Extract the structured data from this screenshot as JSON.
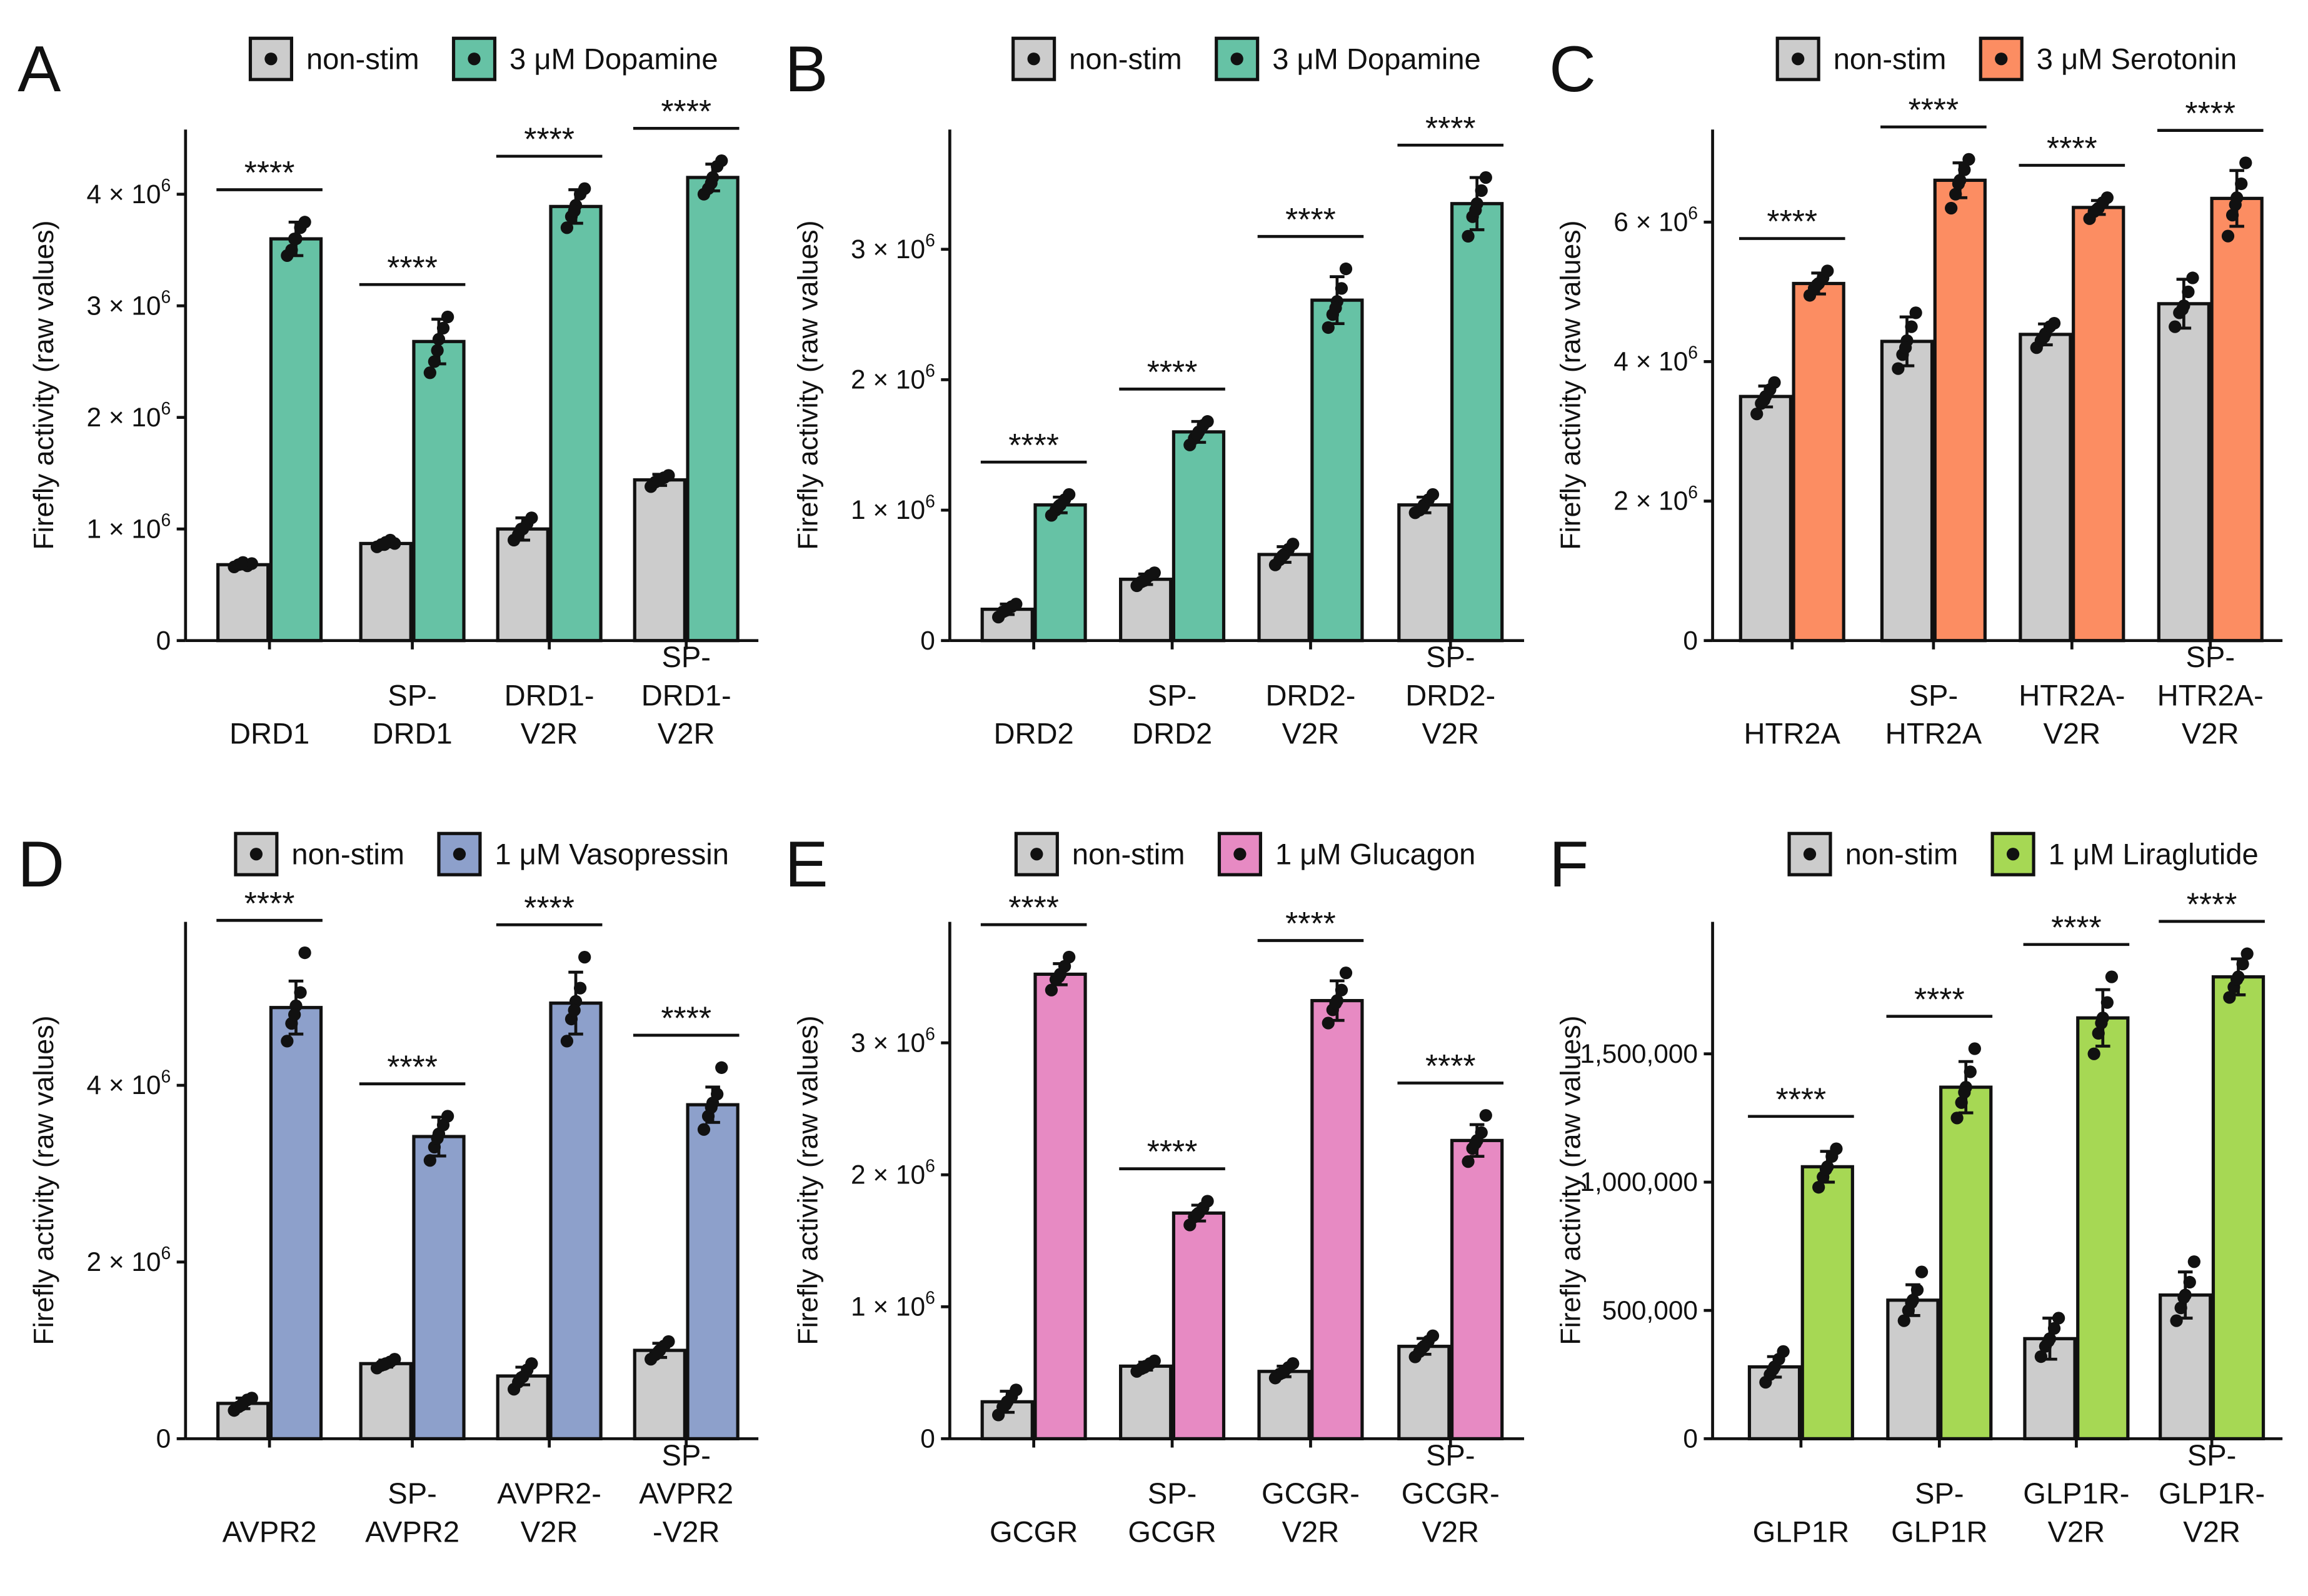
{
  "figure": {
    "y_axis_label": "Firefly activity (raw values)",
    "control_color": "#cccccc"
  },
  "chart_data": [
    {
      "panel": "A",
      "type": "bar",
      "ylabel": "Firefly activity (raw values)",
      "ylim": [
        0,
        4500000
      ],
      "y_ticks": [
        0,
        1000000,
        2000000,
        3000000,
        4000000
      ],
      "y_tick_labels": [
        "0",
        "1 × 10^6",
        "2 × 10^6",
        "3 × 10^6",
        "4 × 10^6"
      ],
      "categories": [
        [
          "DRD1"
        ],
        [
          "SP-",
          "DRD1"
        ],
        [
          "DRD1-",
          "V2R"
        ],
        [
          "SP-",
          "DRD1-",
          "V2R"
        ]
      ],
      "series": [
        {
          "name": "non-stim",
          "color": "#cccccc",
          "values": [
            680000,
            870000,
            1000000,
            1440000
          ],
          "errors": [
            20000,
            30000,
            100000,
            50000
          ],
          "points": [
            [
              660000,
              680000,
              700000,
              670000,
              690000,
              685000
            ],
            [
              840000,
              860000,
              880000,
              900000,
              870000,
              860000
            ],
            [
              900000,
              950000,
              1000000,
              1050000,
              1100000,
              1000000
            ],
            [
              1380000,
              1420000,
              1440000,
              1460000,
              1480000,
              1440000
            ]
          ]
        },
        {
          "name": "3 μM Dopamine",
          "color": "#66c2a5",
          "values": [
            3600000,
            2680000,
            3890000,
            4150000
          ],
          "errors": [
            150000,
            200000,
            150000,
            120000
          ],
          "points": [
            [
              3450000,
              3500000,
              3600000,
              3700000,
              3750000,
              3600000
            ],
            [
              2400000,
              2500000,
              2700000,
              2800000,
              2900000,
              2600000
            ],
            [
              3700000,
              3800000,
              3900000,
              4000000,
              4050000,
              3850000
            ],
            [
              4000000,
              4050000,
              4150000,
              4250000,
              4300000,
              4100000
            ]
          ]
        }
      ],
      "significance": [
        "****",
        "****",
        "****",
        "****"
      ]
    },
    {
      "panel": "B",
      "type": "bar",
      "ylabel": "Firefly activity (raw values)",
      "ylim": [
        0,
        3850000
      ],
      "y_ticks": [
        0,
        1000000,
        2000000,
        3000000
      ],
      "y_tick_labels": [
        "0",
        "1 × 10^6",
        "2 × 10^6",
        "3 × 10^6"
      ],
      "categories": [
        [
          "DRD2"
        ],
        [
          "SP-",
          "DRD2"
        ],
        [
          "DRD2-",
          "V2R"
        ],
        [
          "SP-",
          "DRD2-",
          "V2R"
        ]
      ],
      "series": [
        {
          "name": "non-stim",
          "color": "#cccccc",
          "values": [
            240000,
            470000,
            660000,
            1040000
          ],
          "errors": [
            40000,
            40000,
            60000,
            60000
          ],
          "points": [
            [
              180000,
              220000,
              240000,
              260000,
              280000,
              230000
            ],
            [
              420000,
              450000,
              470000,
              500000,
              520000,
              460000
            ],
            [
              580000,
              620000,
              660000,
              700000,
              740000,
              650000
            ],
            [
              980000,
              1000000,
              1040000,
              1080000,
              1120000,
              1020000
            ]
          ]
        },
        {
          "name": "3 μM Dopamine",
          "color": "#66c2a5",
          "values": [
            1040000,
            1600000,
            2610000,
            3350000
          ],
          "errors": [
            60000,
            80000,
            180000,
            200000
          ],
          "points": [
            [
              960000,
              1000000,
              1040000,
              1080000,
              1120000,
              1030000
            ],
            [
              1500000,
              1550000,
              1600000,
              1650000,
              1680000,
              1580000
            ],
            [
              2400000,
              2500000,
              2600000,
              2700000,
              2850000,
              2550000
            ],
            [
              3100000,
              3250000,
              3350000,
              3450000,
              3550000,
              3300000
            ]
          ]
        }
      ],
      "significance": [
        "****",
        "****",
        "****",
        "****"
      ]
    },
    {
      "panel": "C",
      "type": "bar",
      "ylabel": "Firefly activity (raw values)",
      "ylim": [
        0,
        7200000
      ],
      "y_ticks": [
        0,
        2000000,
        4000000,
        6000000
      ],
      "y_tick_labels": [
        "0",
        "2 × 10^6",
        "4 × 10^6",
        "6 × 10^6"
      ],
      "categories": [
        [
          "HTR2A"
        ],
        [
          "SP-",
          "HTR2A"
        ],
        [
          "HTR2A-",
          "V2R"
        ],
        [
          "SP-",
          "HTR2A-",
          "V2R"
        ]
      ],
      "series": [
        {
          "name": "non-stim",
          "color": "#cccccc",
          "values": [
            3500000,
            4290000,
            4390000,
            4830000
          ],
          "errors": [
            150000,
            350000,
            150000,
            350000
          ],
          "points": [
            [
              3250000,
              3400000,
              3500000,
              3600000,
              3700000,
              3450000
            ],
            [
              3900000,
              4100000,
              4300000,
              4500000,
              4700000,
              4200000
            ],
            [
              4200000,
              4300000,
              4400000,
              4500000,
              4550000,
              4350000
            ],
            [
              4500000,
              4700000,
              4800000,
              5000000,
              5200000,
              4750000
            ]
          ]
        },
        {
          "name": "3 μM Serotonin",
          "color": "#fc8d62",
          "values": [
            5120000,
            6600000,
            6210000,
            6340000
          ],
          "errors": [
            150000,
            250000,
            100000,
            400000
          ],
          "points": [
            [
              4950000,
              5050000,
              5120000,
              5200000,
              5300000,
              5100000
            ],
            [
              6200000,
              6400000,
              6600000,
              6750000,
              6900000,
              6550000
            ],
            [
              6050000,
              6150000,
              6200000,
              6280000,
              6350000,
              6180000
            ],
            [
              5800000,
              6100000,
              6350000,
              6550000,
              6850000,
              6250000
            ]
          ]
        }
      ],
      "significance": [
        "****",
        "****",
        "****",
        "****"
      ]
    },
    {
      "panel": "D",
      "type": "bar",
      "ylabel": "Firefly activity (raw values)",
      "ylim": [
        0,
        5750000
      ],
      "y_ticks": [
        0,
        2000000,
        4000000
      ],
      "y_tick_labels": [
        "0",
        "2 × 10^6",
        "4 × 10^6"
      ],
      "categories": [
        [
          "AVPR2"
        ],
        [
          "SP-",
          "AVPR2"
        ],
        [
          "AVPR2-",
          "V2R"
        ],
        [
          "SP-",
          "AVPR2",
          "-V2R"
        ]
      ],
      "series": [
        {
          "name": "non-stim",
          "color": "#cccccc",
          "values": [
            400000,
            850000,
            710000,
            1000000
          ],
          "errors": [
            60000,
            40000,
            100000,
            80000
          ],
          "points": [
            [
              320000,
              360000,
              400000,
              440000,
              460000,
              380000
            ],
            [
              800000,
              830000,
              850000,
              870000,
              900000,
              840000
            ],
            [
              560000,
              640000,
              700000,
              780000,
              850000,
              690000
            ],
            [
              900000,
              950000,
              1000000,
              1050000,
              1100000,
              980000
            ]
          ]
        },
        {
          "name": "1 μM Vasopressin",
          "color": "#8da0cb",
          "values": [
            4880000,
            3420000,
            4930000,
            3780000
          ],
          "errors": [
            300000,
            220000,
            350000,
            200000
          ],
          "points": [
            [
              4500000,
              4700000,
              4900000,
              5050000,
              5500000,
              4800000
            ],
            [
              3150000,
              3300000,
              3450000,
              3550000,
              3650000,
              3400000
            ],
            [
              4500000,
              4750000,
              4950000,
              5100000,
              5450000,
              4850000
            ],
            [
              3500000,
              3650000,
              3800000,
              3900000,
              4200000,
              3750000
            ]
          ]
        }
      ],
      "significance": [
        "****",
        "****",
        "****",
        "****"
      ]
    },
    {
      "panel": "E",
      "type": "bar",
      "ylabel": "Firefly activity (raw values)",
      "ylim": [
        0,
        3850000
      ],
      "y_ticks": [
        0,
        1000000,
        2000000,
        3000000
      ],
      "y_tick_labels": [
        "0",
        "1 × 10^6",
        "2 × 10^6",
        "3 × 10^6"
      ],
      "categories": [
        [
          "GCGR"
        ],
        [
          "SP-",
          "GCGR"
        ],
        [
          "GCGR-",
          "V2R"
        ],
        [
          "SP-",
          "GCGR-",
          "V2R"
        ]
      ],
      "series": [
        {
          "name": "non-stim",
          "color": "#cccccc",
          "values": [
            280000,
            550000,
            510000,
            700000
          ],
          "errors": [
            80000,
            30000,
            40000,
            60000
          ],
          "points": [
            [
              180000,
              240000,
              280000,
              320000,
              370000,
              260000
            ],
            [
              510000,
              530000,
              550000,
              570000,
              590000,
              540000
            ],
            [
              460000,
              490000,
              510000,
              540000,
              570000,
              500000
            ],
            [
              620000,
              660000,
              700000,
              740000,
              780000,
              690000
            ]
          ]
        },
        {
          "name": "1 μM Glucagon",
          "color": "#e78ac3",
          "values": [
            3520000,
            1710000,
            3320000,
            2260000
          ],
          "errors": [
            80000,
            60000,
            150000,
            120000
          ],
          "points": [
            [
              3400000,
              3480000,
              3520000,
              3580000,
              3650000,
              3500000
            ],
            [
              1620000,
              1680000,
              1710000,
              1750000,
              1800000,
              1700000
            ],
            [
              3150000,
              3250000,
              3320000,
              3400000,
              3530000,
              3300000
            ],
            [
              2100000,
              2200000,
              2260000,
              2320000,
              2450000,
              2240000
            ]
          ]
        }
      ],
      "significance": [
        "****",
        "****",
        "****",
        "****"
      ]
    },
    {
      "panel": "F",
      "type": "bar",
      "ylabel": "Firefly activity (raw values)",
      "ylim": [
        0,
        1980000
      ],
      "y_ticks": [
        0,
        500000,
        1000000,
        1500000
      ],
      "y_tick_labels": [
        "0",
        "500,000",
        "1,000,000",
        "1,500,000"
      ],
      "categories": [
        [
          "GLP1R"
        ],
        [
          "SP-",
          "GLP1R"
        ],
        [
          "GLP1R-",
          "V2R"
        ],
        [
          "SP-",
          "GLP1R-",
          "V2R"
        ]
      ],
      "series": [
        {
          "name": "non-stim",
          "color": "#cccccc",
          "values": [
            280000,
            540000,
            390000,
            560000
          ],
          "errors": [
            40000,
            60000,
            80000,
            90000
          ],
          "points": [
            [
              220000,
              250000,
              280000,
              310000,
              340000,
              270000
            ],
            [
              460000,
              500000,
              540000,
              580000,
              650000,
              530000
            ],
            [
              320000,
              360000,
              390000,
              430000,
              470000,
              380000
            ],
            [
              460000,
              510000,
              560000,
              610000,
              690000,
              550000
            ]
          ]
        },
        {
          "name": "1 μM Liraglutide",
          "color": "#a6d854",
          "values": [
            1060000,
            1370000,
            1640000,
            1800000
          ],
          "errors": [
            60000,
            100000,
            110000,
            70000
          ],
          "points": [
            [
              980000,
              1020000,
              1060000,
              1100000,
              1130000,
              1050000
            ],
            [
              1250000,
              1310000,
              1370000,
              1430000,
              1520000,
              1350000
            ],
            [
              1500000,
              1580000,
              1640000,
              1700000,
              1800000,
              1620000
            ],
            [
              1720000,
              1760000,
              1800000,
              1850000,
              1890000,
              1790000
            ]
          ]
        }
      ],
      "significance": [
        "****",
        "****",
        "****",
        "****"
      ]
    }
  ]
}
